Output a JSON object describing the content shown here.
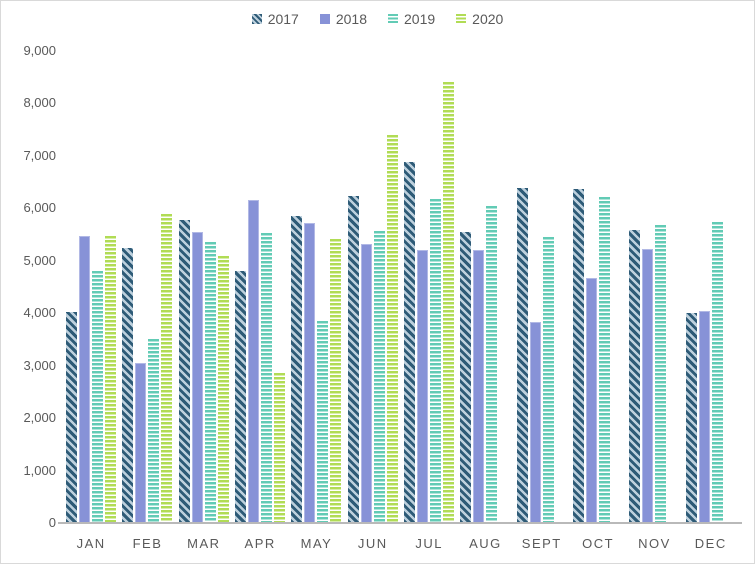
{
  "chart_data": {
    "type": "bar",
    "title": "",
    "categories": [
      "JAN",
      "FEB",
      "MAR",
      "APR",
      "MAY",
      "JUN",
      "JUL",
      "AUG",
      "SEPT",
      "OCT",
      "NOV",
      "DEC"
    ],
    "series": [
      {
        "name": "2017",
        "pattern": "diagonal-stripes",
        "color": "#2E5B77",
        "stripe_color": "#BDD0DD",
        "values": [
          4030,
          5240,
          5770,
          4800,
          5850,
          6230,
          6890,
          5540,
          6390,
          6370,
          5590,
          4010
        ]
      },
      {
        "name": "2018",
        "pattern": "solid",
        "color": "#8792D7",
        "values": [
          5470,
          3050,
          5550,
          6150,
          5720,
          5320,
          5200,
          5210,
          3840,
          4680,
          5230,
          4050
        ]
      },
      {
        "name": "2019",
        "pattern": "horizontal-stripes",
        "color": "#62CBB5",
        "stripe_color": "#FFFFFF",
        "values": [
          4800,
          3500,
          5350,
          5530,
          3850,
          5560,
          6170,
          6040,
          5450,
          6210,
          5680,
          5740
        ]
      },
      {
        "name": "2020",
        "pattern": "horizontal-stripes",
        "color": "#B1DC55",
        "stripe_color": "#FFFFFF",
        "values": [
          5480,
          5900,
          5100,
          2870,
          5420,
          7400,
          8400,
          null,
          null,
          null,
          null,
          null
        ]
      }
    ],
    "ylim": [
      0,
      9000
    ],
    "ytick_step": 1000,
    "ytick_labels": [
      "0",
      "1,000",
      "2,000",
      "3,000",
      "4,000",
      "5,000",
      "6,000",
      "7,000",
      "8,000",
      "9,000"
    ],
    "xlabel": "",
    "ylabel": "",
    "grid": false,
    "legend_position": "top-center",
    "colors": {
      "axis_text": "#595959",
      "baseline": "#B9B9B9",
      "chart_border": "#D9D9D9",
      "background": "#FFFFFF"
    }
  }
}
